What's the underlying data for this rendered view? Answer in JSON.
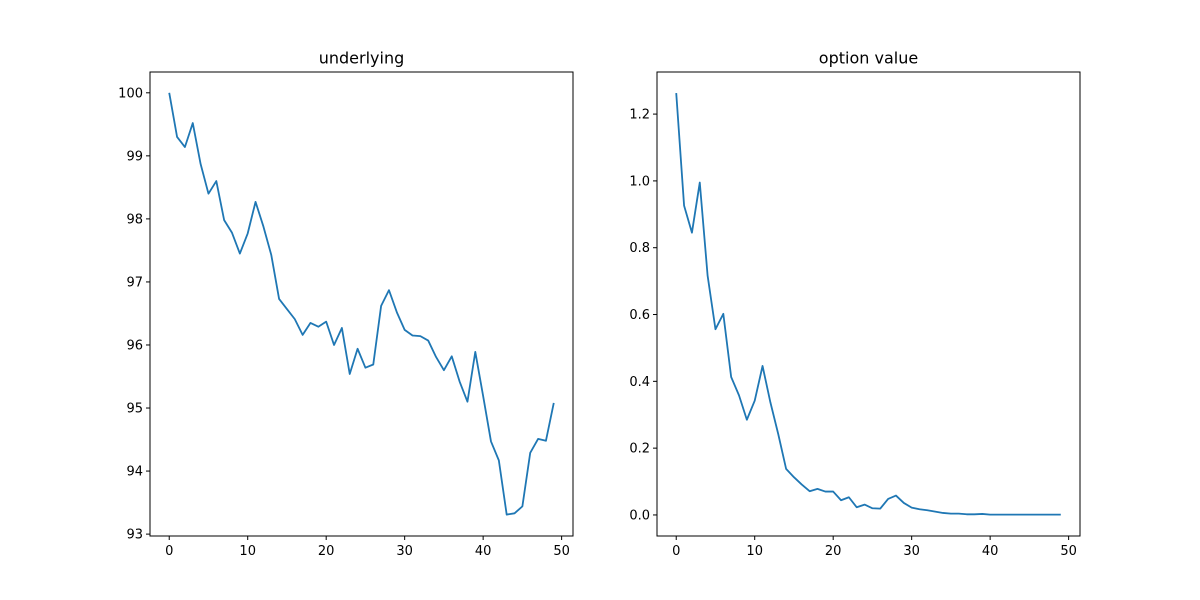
{
  "chart_data": [
    {
      "type": "line",
      "title": "underlying",
      "xlabel": "",
      "ylabel": "",
      "xlim": [
        -2.45,
        51.45
      ],
      "ylim": [
        92.97,
        100.33
      ],
      "xticks": [
        0,
        10,
        20,
        30,
        40,
        50
      ],
      "yticks": [
        93,
        94,
        95,
        96,
        97,
        98,
        99,
        100
      ],
      "grid": false,
      "color": "#1f77b4",
      "series": [
        {
          "x": [
            0,
            1,
            2,
            3,
            4,
            5,
            6,
            7,
            8,
            9,
            10,
            11,
            12,
            13,
            14,
            15,
            16,
            17,
            18,
            19,
            20,
            21,
            22,
            23,
            24,
            25,
            26,
            27,
            28,
            29,
            30,
            31,
            32,
            33,
            34,
            35,
            36,
            37,
            38,
            39,
            40,
            41,
            42,
            43,
            44,
            45,
            46,
            47,
            48,
            49
          ],
          "values": [
            100.0,
            99.3,
            99.14,
            99.52,
            98.87,
            98.4,
            98.6,
            97.98,
            97.78,
            97.45,
            97.77,
            98.27,
            97.88,
            97.43,
            96.73,
            96.57,
            96.41,
            96.16,
            96.35,
            96.29,
            96.37,
            96.0,
            96.27,
            95.54,
            95.94,
            95.64,
            95.69,
            96.62,
            96.87,
            96.52,
            96.24,
            96.15,
            96.14,
            96.07,
            95.81,
            95.6,
            95.82,
            95.42,
            95.1,
            95.89,
            95.19,
            94.47,
            94.17,
            93.31,
            93.33,
            93.44,
            94.29,
            94.51,
            94.48,
            95.08
          ]
        }
      ]
    },
    {
      "type": "line",
      "title": "option value",
      "xlabel": "",
      "ylabel": "",
      "xlim": [
        -2.45,
        51.45
      ],
      "ylim": [
        -0.063,
        1.326
      ],
      "xticks": [
        0,
        10,
        20,
        30,
        40,
        50
      ],
      "yticks": [
        0.0,
        0.2,
        0.4,
        0.6,
        0.8,
        1.0,
        1.2
      ],
      "ytick_labels": [
        "0.0",
        "0.2",
        "0.4",
        "0.6",
        "0.8",
        "1.0",
        "1.2"
      ],
      "grid": false,
      "color": "#1f77b4",
      "series": [
        {
          "x": [
            0,
            1,
            2,
            3,
            4,
            5,
            6,
            7,
            8,
            9,
            10,
            11,
            12,
            13,
            14,
            15,
            16,
            17,
            18,
            19,
            20,
            21,
            22,
            23,
            24,
            25,
            26,
            27,
            28,
            29,
            30,
            31,
            32,
            33,
            34,
            35,
            36,
            37,
            38,
            39,
            40,
            41,
            42,
            43,
            44,
            45,
            46,
            47,
            48,
            49
          ],
          "values": [
            1.263,
            0.926,
            0.845,
            0.995,
            0.716,
            0.556,
            0.602,
            0.413,
            0.358,
            0.285,
            0.342,
            0.446,
            0.337,
            0.242,
            0.138,
            0.113,
            0.091,
            0.071,
            0.078,
            0.07,
            0.07,
            0.044,
            0.053,
            0.023,
            0.031,
            0.02,
            0.019,
            0.048,
            0.058,
            0.036,
            0.022,
            0.017,
            0.014,
            0.01,
            0.006,
            0.004,
            0.004,
            0.002,
            0.002,
            0.003,
            0.001,
            0.001,
            0.001,
            0.001,
            0.001,
            0.001,
            0.001,
            0.001,
            0.001,
            0.001
          ]
        }
      ]
    }
  ]
}
